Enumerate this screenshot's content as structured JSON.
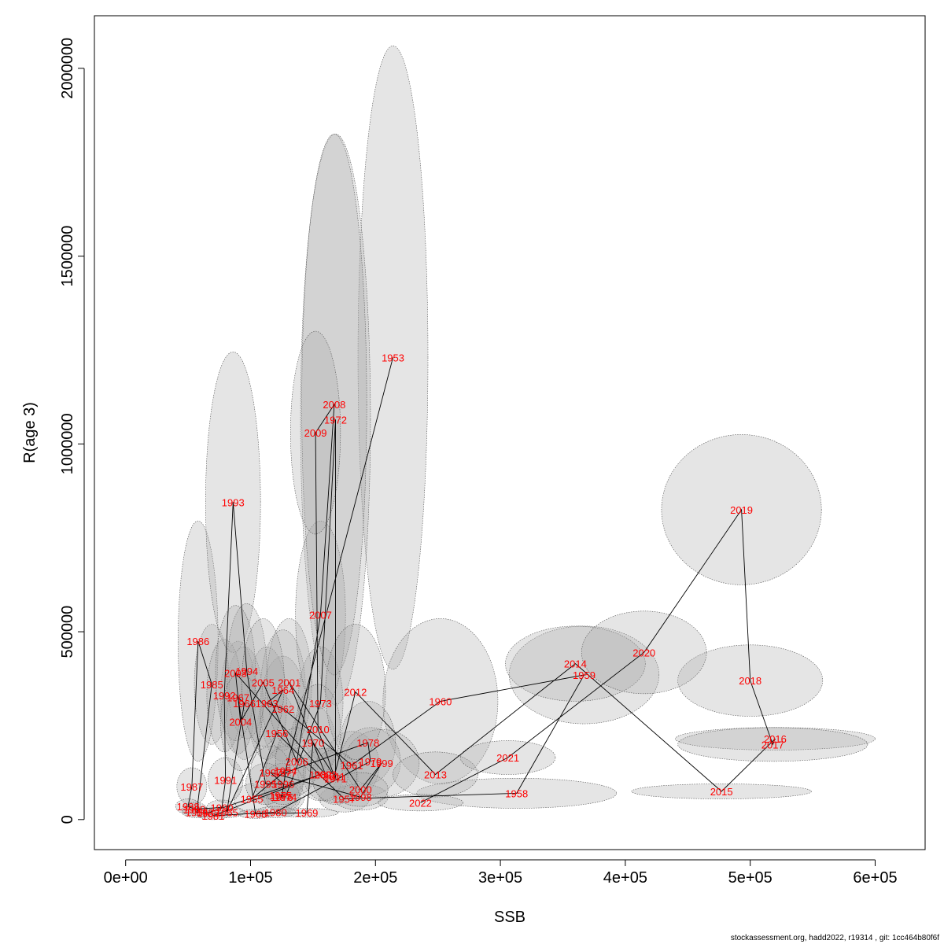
{
  "chart_data": {
    "type": "scatter",
    "xlabel": "SSB",
    "ylabel": "R(age 3)",
    "xlim": [
      -25000,
      640000
    ],
    "ylim": [
      -80000,
      2140000
    ],
    "x_ticks": [
      0,
      100000,
      200000,
      300000,
      400000,
      500000,
      600000
    ],
    "x_tick_labels": [
      "0e+00",
      "1e+05",
      "2e+05",
      "3e+05",
      "4e+05",
      "5e+05",
      "6e+05"
    ],
    "y_ticks": [
      0,
      500000,
      1000000,
      1500000,
      2000000
    ],
    "y_tick_labels": [
      "0",
      "500000",
      "1000000",
      "1500000",
      "2000000"
    ],
    "grid": false,
    "legend": "none",
    "footer": "stockassessment.org, hadd2022, r19314 , git: 1cc464b80f6f",
    "colors": {
      "label": "#ff0000",
      "line": "#000000",
      "ellipse_fill": "rgba(170,170,170,0.3)",
      "ellipse_stroke": "#555555"
    },
    "points": [
      {
        "year": "1953",
        "ssb": 214000,
        "rec": 1230000,
        "sx": 28000,
        "sy": 830000
      },
      {
        "year": "1954",
        "ssb": 128000,
        "rec": 130000,
        "sx": 16000,
        "sy": 70000
      },
      {
        "year": "1955",
        "ssb": 101000,
        "rec": 55000,
        "sx": 14000,
        "sy": 40000
      },
      {
        "year": "1956",
        "ssb": 121000,
        "rec": 230000,
        "sx": 16000,
        "sy": 110000
      },
      {
        "year": "1957",
        "ssb": 175000,
        "rec": 55000,
        "sx": 20000,
        "sy": 35000
      },
      {
        "year": "1958",
        "ssb": 313000,
        "rec": 70000,
        "sx": 80000,
        "sy": 40000
      },
      {
        "year": "1959",
        "ssb": 367000,
        "rec": 385000,
        "sx": 60000,
        "sy": 130000
      },
      {
        "year": "1960",
        "ssb": 252000,
        "rec": 315000,
        "sx": 46000,
        "sy": 220000
      },
      {
        "year": "1961",
        "ssb": 181000,
        "rec": 145000,
        "sx": 22000,
        "sy": 90000
      },
      {
        "year": "1962",
        "ssb": 126000,
        "rec": 295000,
        "sx": 18000,
        "sy": 140000
      },
      {
        "year": "1963",
        "ssb": 113000,
        "rec": 310000,
        "sx": 16000,
        "sy": 150000
      },
      {
        "year": "1964",
        "ssb": 126000,
        "rec": 345000,
        "sx": 18000,
        "sy": 160000
      },
      {
        "year": "1965",
        "ssb": 81000,
        "rec": 20000,
        "sx": 14000,
        "sy": 15000
      },
      {
        "year": "1966",
        "ssb": 95000,
        "rec": 310000,
        "sx": 15000,
        "sy": 150000
      },
      {
        "year": "1967",
        "ssb": 90000,
        "rec": 325000,
        "sx": 14000,
        "sy": 150000
      },
      {
        "year": "1968",
        "ssb": 104000,
        "rec": 15000,
        "sx": 14000,
        "sy": 12000
      },
      {
        "year": "1969",
        "ssb": 145000,
        "rec": 18000,
        "sx": 25000,
        "sy": 12000
      },
      {
        "year": "1970",
        "ssb": 150000,
        "rec": 205000,
        "sx": 18000,
        "sy": 100000
      },
      {
        "year": "1971",
        "ssb": 168000,
        "rec": 110000,
        "sx": 18000,
        "sy": 70000
      },
      {
        "year": "1972",
        "ssb": 168000,
        "rec": 1065000,
        "sx": 28000,
        "sy": 760000
      },
      {
        "year": "1973",
        "ssb": 156000,
        "rec": 310000,
        "sx": 18000,
        "sy": 150000
      },
      {
        "year": "1974",
        "ssb": 128000,
        "rec": 60000,
        "sx": 15000,
        "sy": 40000
      },
      {
        "year": "1975",
        "ssb": 124000,
        "rec": 65000,
        "sx": 15000,
        "sy": 40000
      },
      {
        "year": "1976",
        "ssb": 125000,
        "rec": 60000,
        "sx": 15000,
        "sy": 40000
      },
      {
        "year": "1977",
        "ssb": 128000,
        "rec": 125000,
        "sx": 16000,
        "sy": 70000
      },
      {
        "year": "1978",
        "ssb": 194000,
        "rec": 205000,
        "sx": 22000,
        "sy": 110000
      },
      {
        "year": "1979",
        "ssb": 196000,
        "rec": 155000,
        "sx": 24000,
        "sy": 90000
      },
      {
        "year": "1980",
        "ssb": 120000,
        "rec": 20000,
        "sx": 16000,
        "sy": 15000
      },
      {
        "year": "1981",
        "ssb": 70000,
        "rec": 10000,
        "sx": 12000,
        "sy": 10000
      },
      {
        "year": "1982",
        "ssb": 156000,
        "rec": 120000,
        "sx": 18000,
        "sy": 70000
      },
      {
        "year": "1983",
        "ssb": 66000,
        "rec": 18000,
        "sx": 12000,
        "sy": 12000
      },
      {
        "year": "1984",
        "ssb": 57000,
        "rec": 20000,
        "sx": 12000,
        "sy": 15000
      },
      {
        "year": "1985",
        "ssb": 69000,
        "rec": 360000,
        "sx": 14000,
        "sy": 160000
      },
      {
        "year": "1986",
        "ssb": 58000,
        "rec": 475000,
        "sx": 16000,
        "sy": 320000
      },
      {
        "year": "1987",
        "ssb": 53000,
        "rec": 88000,
        "sx": 12000,
        "sy": 50000
      },
      {
        "year": "1988",
        "ssb": 50000,
        "rec": 35000,
        "sx": 10000,
        "sy": 20000
      },
      {
        "year": "1989",
        "ssb": 55000,
        "rec": 28000,
        "sx": 10000,
        "sy": 18000
      },
      {
        "year": "1990",
        "ssb": 77000,
        "rec": 32000,
        "sx": 12000,
        "sy": 20000
      },
      {
        "year": "1991",
        "ssb": 80000,
        "rec": 105000,
        "sx": 14000,
        "sy": 60000
      },
      {
        "year": "1992",
        "ssb": 79000,
        "rec": 330000,
        "sx": 14000,
        "sy": 150000
      },
      {
        "year": "1993",
        "ssb": 86000,
        "rec": 845000,
        "sx": 22000,
        "sy": 400000
      },
      {
        "year": "1994",
        "ssb": 97000,
        "rec": 395000,
        "sx": 16000,
        "sy": 180000
      },
      {
        "year": "1995",
        "ssb": 112000,
        "rec": 95000,
        "sx": 16000,
        "sy": 55000
      },
      {
        "year": "1996",
        "ssb": 126000,
        "rec": 95000,
        "sx": 16000,
        "sy": 55000
      },
      {
        "year": "1997",
        "ssb": 116000,
        "rec": 125000,
        "sx": 16000,
        "sy": 70000
      },
      {
        "year": "1998",
        "ssb": 188000,
        "rec": 60000,
        "sx": 22000,
        "sy": 35000
      },
      {
        "year": "1999",
        "ssb": 205000,
        "rec": 150000,
        "sx": 30000,
        "sy": 90000
      },
      {
        "year": "2000",
        "ssb": 188000,
        "rec": 80000,
        "sx": 22000,
        "sy": 45000
      },
      {
        "year": "2001",
        "ssb": 131000,
        "rec": 365000,
        "sx": 18000,
        "sy": 170000
      },
      {
        "year": "2002",
        "ssb": 160000,
        "rec": 120000,
        "sx": 18000,
        "sy": 70000
      },
      {
        "year": "2003",
        "ssb": 88000,
        "rec": 390000,
        "sx": 16000,
        "sy": 180000
      },
      {
        "year": "2004",
        "ssb": 92000,
        "rec": 260000,
        "sx": 16000,
        "sy": 130000
      },
      {
        "year": "2005",
        "ssb": 110000,
        "rec": 365000,
        "sx": 17000,
        "sy": 170000
      },
      {
        "year": "2006",
        "ssb": 137000,
        "rec": 155000,
        "sx": 17000,
        "sy": 90000
      },
      {
        "year": "2007",
        "ssb": 156000,
        "rec": 545000,
        "sx": 20000,
        "sy": 250000
      },
      {
        "year": "2008",
        "ssb": 167000,
        "rec": 1105000,
        "sx": 26000,
        "sy": 720000
      },
      {
        "year": "2009",
        "ssb": 152000,
        "rec": 1030000,
        "sx": 20000,
        "sy": 270000
      },
      {
        "year": "2010",
        "ssb": 154000,
        "rec": 240000,
        "sx": 18000,
        "sy": 120000
      },
      {
        "year": "2011",
        "ssb": 167000,
        "rec": 115000,
        "sx": 18000,
        "sy": 70000
      },
      {
        "year": "2012",
        "ssb": 184000,
        "rec": 340000,
        "sx": 24000,
        "sy": 180000
      },
      {
        "year": "2013",
        "ssb": 248000,
        "rec": 120000,
        "sx": 34000,
        "sy": 60000
      },
      {
        "year": "2014",
        "ssb": 360000,
        "rec": 415000,
        "sx": 56000,
        "sy": 100000
      },
      {
        "year": "2015",
        "ssb": 477000,
        "rec": 75000,
        "sx": 72000,
        "sy": 20000
      },
      {
        "year": "2016",
        "ssb": 520000,
        "rec": 215000,
        "sx": 80000,
        "sy": 30000
      },
      {
        "year": "2017",
        "ssb": 518000,
        "rec": 200000,
        "sx": 76000,
        "sy": 45000
      },
      {
        "year": "2018",
        "ssb": 500000,
        "rec": 370000,
        "sx": 58000,
        "sy": 95000
      },
      {
        "year": "2019",
        "ssb": 493000,
        "rec": 825000,
        "sx": 64000,
        "sy": 200000
      },
      {
        "year": "2020",
        "ssb": 415000,
        "rec": 445000,
        "sx": 50000,
        "sy": 110000
      },
      {
        "year": "2021",
        "ssb": 306000,
        "rec": 165000,
        "sx": 38000,
        "sy": 45000
      },
      {
        "year": "2022",
        "ssb": 236000,
        "rec": 45000,
        "sx": 34000,
        "sy": 22000
      }
    ]
  }
}
